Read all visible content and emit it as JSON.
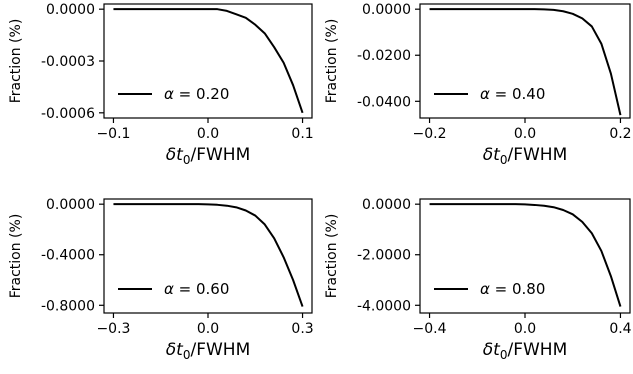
{
  "chart_data": [
    {
      "type": "line",
      "ylabel": "Fraction (%)",
      "xlabel_main": "δt",
      "xlabel_sub": "0",
      "xlabel_tail": "/FWHM",
      "xlim": [
        -0.1,
        0.1
      ],
      "ylim": [
        -0.0006,
        0.0
      ],
      "xticks": [
        -0.1,
        0.0,
        0.1
      ],
      "xtick_labels": [
        "−0.1",
        "0.0",
        "0.1"
      ],
      "yticks": [
        0.0,
        -0.0003,
        -0.0006
      ],
      "ytick_labels": [
        "0.0000",
        "-0.0003",
        "-0.0006"
      ],
      "legend": {
        "symbol": "α",
        "text": " = 0.20",
        "placement": "lower-left"
      },
      "series": [
        {
          "color": "#000000",
          "x": [
            -0.1,
            -0.09,
            -0.08,
            -0.07,
            -0.06,
            -0.05,
            -0.04,
            -0.03,
            -0.02,
            -0.01,
            0.0,
            0.01,
            0.02,
            0.03,
            0.04,
            0.05,
            0.06,
            0.07,
            0.08,
            0.09,
            0.1
          ],
          "y": [
            -0.0,
            -0.0,
            -0.0,
            -0.0,
            -0.0,
            -0.0,
            -0.0,
            -0.0,
            -0.0,
            -0.0,
            -0.0,
            -0.0,
            -1e-05,
            -3e-05,
            -5e-05,
            -9e-05,
            -0.00014,
            -0.00022,
            -0.00031,
            -0.00044,
            -0.0006
          ]
        }
      ]
    },
    {
      "type": "line",
      "ylabel": "Fraction (%)",
      "xlabel_main": "δt",
      "xlabel_sub": "0",
      "xlabel_tail": "/FWHM",
      "xlim": [
        -0.2,
        0.2
      ],
      "ylim": [
        -0.045,
        0.0
      ],
      "xticks": [
        -0.2,
        0.0,
        0.2
      ],
      "xtick_labels": [
        "−0.2",
        "0.0",
        "0.2"
      ],
      "yticks": [
        0.0,
        -0.02,
        -0.04
      ],
      "ytick_labels": [
        "0.0000",
        "-0.0200",
        "-0.0400"
      ],
      "legend": {
        "symbol": "α",
        "text": " = 0.40",
        "placement": "lower-left"
      },
      "series": [
        {
          "color": "#000000",
          "x": [
            -0.2,
            -0.18,
            -0.16,
            -0.14,
            -0.12,
            -0.1,
            -0.08,
            -0.06,
            -0.04,
            -0.02,
            0.0,
            0.02,
            0.04,
            0.06,
            0.08,
            0.1,
            0.12,
            0.14,
            0.16,
            0.18,
            0.2
          ],
          "y": [
            -0.0,
            -0.0,
            -0.0,
            -0.0,
            -0.0,
            -0.0,
            -0.0,
            -0.0,
            -0.0,
            -0.0,
            -0.0,
            -0.0,
            -0.0001,
            -0.0003,
            -0.0009,
            -0.002,
            -0.004,
            -0.0075,
            -0.015,
            -0.028,
            -0.046
          ]
        }
      ]
    },
    {
      "type": "line",
      "ylabel": "Fraction (%)",
      "xlabel_main": "δt",
      "xlabel_sub": "0",
      "xlabel_tail": "/FWHM",
      "xlim": [
        -0.3,
        0.3
      ],
      "ylim": [
        -0.82,
        0.0
      ],
      "xticks": [
        -0.3,
        0.0,
        0.3
      ],
      "xtick_labels": [
        "−0.3",
        "0.0",
        "0.3"
      ],
      "yticks": [
        0.0,
        -0.4,
        -0.8
      ],
      "ytick_labels": [
        "0.0000",
        "-0.4000",
        "-0.8000"
      ],
      "legend": {
        "symbol": "α",
        "text": " = 0.60",
        "placement": "lower-left"
      },
      "series": [
        {
          "color": "#000000",
          "x": [
            -0.3,
            -0.27,
            -0.24,
            -0.21,
            -0.18,
            -0.15,
            -0.12,
            -0.09,
            -0.06,
            -0.03,
            0.0,
            0.03,
            0.06,
            0.09,
            0.12,
            0.15,
            0.18,
            0.21,
            0.24,
            0.27,
            0.3
          ],
          "y": [
            -0.0,
            -0.0,
            -0.0,
            -0.0,
            -0.0,
            -0.0,
            -0.0,
            -0.0,
            -0.0,
            -0.0,
            -0.002,
            -0.005,
            -0.012,
            -0.025,
            -0.05,
            -0.09,
            -0.16,
            -0.27,
            -0.42,
            -0.6,
            -0.81
          ]
        }
      ]
    },
    {
      "type": "line",
      "ylabel": "Fraction (%)",
      "xlabel_main": "δt",
      "xlabel_sub": "0",
      "xlabel_tail": "/FWHM",
      "xlim": [
        -0.4,
        0.4
      ],
      "ylim": [
        -4.1,
        0.0
      ],
      "xticks": [
        -0.4,
        0.0,
        0.4
      ],
      "xtick_labels": [
        "−0.4",
        "0.0",
        "0.4"
      ],
      "yticks": [
        0.0,
        -2.0,
        -4.0
      ],
      "ytick_labels": [
        "0.0000",
        "-2.0000",
        "-4.0000"
      ],
      "legend": {
        "symbol": "α",
        "text": " = 0.80",
        "placement": "lower-left"
      },
      "series": [
        {
          "color": "#000000",
          "x": [
            -0.4,
            -0.36,
            -0.32,
            -0.28,
            -0.24,
            -0.2,
            -0.16,
            -0.12,
            -0.08,
            -0.04,
            0.0,
            0.04,
            0.08,
            0.12,
            0.16,
            0.2,
            0.24,
            0.28,
            0.32,
            0.36,
            0.4
          ],
          "y": [
            -0.0,
            -0.0,
            -0.0,
            -0.0,
            -0.0,
            -0.0,
            -0.0,
            -0.0,
            -0.0,
            -0.0,
            -0.01,
            -0.03,
            -0.06,
            -0.12,
            -0.23,
            -0.4,
            -0.7,
            -1.15,
            -1.85,
            -2.85,
            -4.05
          ]
        }
      ]
    }
  ]
}
